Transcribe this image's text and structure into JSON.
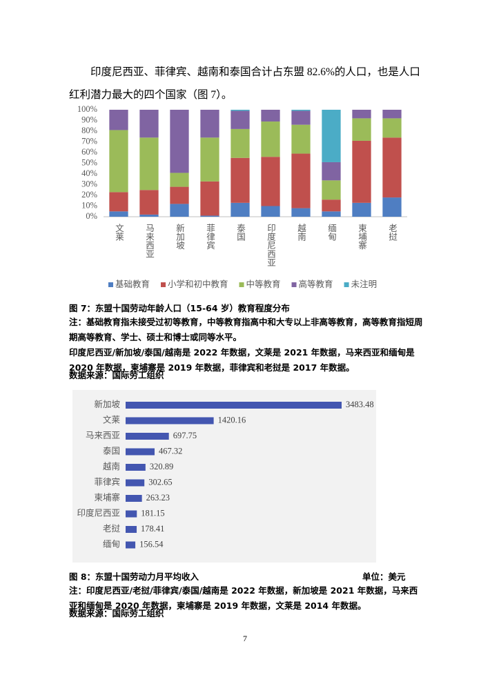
{
  "paragraph": "印度尼西亚、菲律宾、越南和泰国合计占东盟 82.6%的人口，也是人口红利潜力最大的四个国家（图 7）。",
  "chart_data": [
    {
      "type": "bar",
      "stacked": true,
      "categories": [
        "文莱",
        "马来西亚",
        "新加坡",
        "菲律宾",
        "泰国",
        "印度尼西亚",
        "越南",
        "缅甸",
        "柬埔寨",
        "老挝"
      ],
      "series": [
        {
          "name": "基础教育",
          "color": "#4f7ec2",
          "values": [
            5,
            2,
            12,
            1,
            13,
            10,
            8,
            5,
            13,
            18
          ]
        },
        {
          "name": "小学和初中教育",
          "color": "#c0504d",
          "values": [
            18,
            23,
            16,
            32,
            42,
            46,
            51,
            11,
            58,
            56
          ]
        },
        {
          "name": "中等教育",
          "color": "#9bbb59",
          "values": [
            58,
            49,
            13,
            41,
            27,
            33,
            27,
            18,
            21,
            18
          ]
        },
        {
          "name": "高等教育",
          "color": "#8064a2",
          "values": [
            19,
            26,
            59,
            26,
            17,
            11,
            13,
            17,
            8,
            8
          ]
        },
        {
          "name": "未注明",
          "color": "#4bacc6",
          "values": [
            0,
            0,
            0,
            0,
            1,
            0,
            1,
            49,
            0,
            0
          ]
        }
      ],
      "ylim": [
        0,
        100
      ],
      "yticks": [
        {
          "value": 0,
          "label": "0%"
        },
        {
          "value": 10,
          "label": "10%"
        },
        {
          "value": 20,
          "label": "20%"
        },
        {
          "value": 30,
          "label": "30%"
        },
        {
          "value": 40,
          "label": "40%"
        },
        {
          "value": 50,
          "label": "50%"
        },
        {
          "value": 60,
          "label": "60%"
        },
        {
          "value": 70,
          "label": "70%"
        },
        {
          "value": 80,
          "label": "80%"
        },
        {
          "value": 90,
          "label": "90%"
        },
        {
          "value": 100,
          "label": "100%"
        }
      ],
      "legend": "bottom"
    },
    {
      "type": "barh",
      "color": "#4356b0",
      "categories": [
        "新加坡",
        "文莱",
        "马来西亚",
        "泰国",
        "越南",
        "菲律宾",
        "柬埔寨",
        "印度尼西亚",
        "老挝",
        "缅甸"
      ],
      "values": [
        3483.48,
        1420.16,
        697.75,
        467.32,
        320.89,
        302.65,
        263.23,
        181.15,
        178.41,
        156.54
      ]
    }
  ],
  "figure7": {
    "caption": "图 7：东盟十国劳动年龄人口（15-64 岁）教育程度分布",
    "notes": [
      "注：基础教育指未接受过初等教育，中等教育指高中和大专以上非高等教育，高等教育指短周期高等教育、学士、硕士和博士或同等水平。",
      "印度尼西亚/新加坡/泰国/越南是 2022 年数据，文莱是 2021 年数据，马来西亚和缅甸是 2020 年数据，柬埔寨是 2019 年数据，菲律宾和老挝是 2017 年数据。"
    ],
    "source": "数据来源：国际劳工组织"
  },
  "figure8": {
    "caption": "图 8：东盟十国劳动力月平均收入",
    "unit": "单位：美元",
    "note": "注：印度尼西亚/老挝/菲律宾/泰国/越南是 2022 年数据，新加坡是 2021 年数据，马来西亚和缅甸是 2020 年数据，柬埔寨是 2019 年数据，文莱是 2014 年数据。",
    "source": "数据来源：国际劳工组织"
  },
  "page_number": "7"
}
